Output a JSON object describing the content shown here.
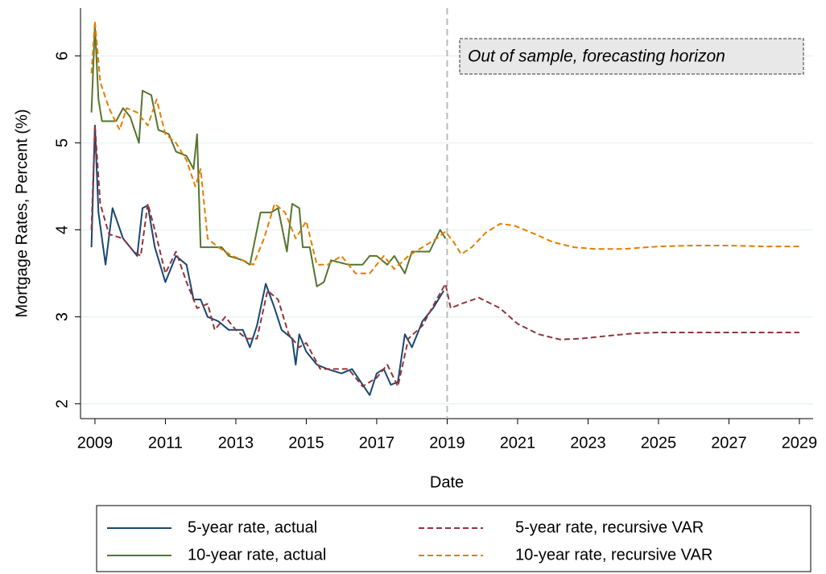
{
  "chart_data": {
    "type": "line",
    "y_label": "Mortgage Rates, Percent (%)",
    "x_label": "Date",
    "annotation": "Out of sample, forecasting horizon",
    "vline": 2019,
    "xlim": [
      2008.59,
      2029.39
    ],
    "xticks": [
      2009,
      2011,
      2013,
      2015,
      2017,
      2019,
      2021,
      2023,
      2025,
      2027,
      2029
    ],
    "ylim": [
      1.83,
      6.55
    ],
    "yticks": [
      2,
      3,
      4,
      5,
      6
    ],
    "grid": true,
    "legend": "bottom",
    "series": [
      {
        "name": "5-year rate, actual",
        "color": "#1a476f",
        "dashed": false,
        "x": [
          2008.9,
          2009.0,
          2009.1,
          2009.3,
          2009.5,
          2009.8,
          2010.0,
          2010.2,
          2010.35,
          2010.5,
          2010.7,
          2011.0,
          2011.3,
          2011.6,
          2011.8,
          2012.0,
          2012.2,
          2012.5,
          2012.8,
          2013.2,
          2013.4,
          2013.6,
          2013.85,
          2014.1,
          2014.3,
          2014.6,
          2014.7,
          2014.8,
          2015.0,
          2015.3,
          2015.6,
          2016.0,
          2016.3,
          2016.8,
          2017.0,
          2017.2,
          2017.4,
          2017.6,
          2017.8,
          2018.0,
          2018.3,
          2018.6,
          2018.9
        ],
        "values": [
          3.8,
          5.2,
          4.2,
          3.6,
          4.25,
          3.9,
          3.8,
          3.7,
          4.25,
          4.28,
          3.8,
          3.4,
          3.7,
          3.6,
          3.2,
          3.2,
          3.0,
          2.95,
          2.85,
          2.85,
          2.65,
          2.9,
          3.38,
          3.1,
          2.85,
          2.75,
          2.45,
          2.8,
          2.6,
          2.45,
          2.4,
          2.35,
          2.4,
          2.1,
          2.35,
          2.4,
          2.22,
          2.25,
          2.8,
          2.65,
          2.95,
          3.1,
          3.3
        ]
      },
      {
        "name": "5-year rate, recursive VAR",
        "color": "#90353b",
        "dashed": true,
        "x": [
          2008.9,
          2009.0,
          2009.15,
          2009.4,
          2009.8,
          2010.1,
          2010.3,
          2010.5,
          2010.7,
          2011.0,
          2011.3,
          2011.6,
          2011.9,
          2012.2,
          2012.4,
          2012.7,
          2013.0,
          2013.3,
          2013.6,
          2013.9,
          2014.2,
          2014.5,
          2014.8,
          2015.0,
          2015.4,
          2015.8,
          2016.2,
          2016.6,
          2017.0,
          2017.3,
          2017.6,
          2017.9,
          2018.3,
          2018.7,
          2018.95,
          2019.1,
          2019.4,
          2019.9,
          2020.5,
          2021.0,
          2021.6,
          2022.2,
          2022.8,
          2023.5,
          2024.3,
          2025.0,
          2026.0,
          2027.0,
          2028.0,
          2029.0
        ],
        "values": [
          4.0,
          5.2,
          4.3,
          3.95,
          3.9,
          3.75,
          3.7,
          4.3,
          4.0,
          3.5,
          3.75,
          3.4,
          3.1,
          3.15,
          2.85,
          3.0,
          2.85,
          2.75,
          2.75,
          3.3,
          3.2,
          2.8,
          2.65,
          2.7,
          2.4,
          2.4,
          2.4,
          2.2,
          2.3,
          2.45,
          2.2,
          2.75,
          2.9,
          3.2,
          3.38,
          3.1,
          3.15,
          3.22,
          3.1,
          2.92,
          2.8,
          2.74,
          2.75,
          2.78,
          2.81,
          2.82,
          2.82,
          2.82,
          2.82,
          2.82
        ]
      },
      {
        "name": "10-year rate, actual",
        "color": "#55752f",
        "dashed": false,
        "x": [
          2008.9,
          2009.0,
          2009.1,
          2009.2,
          2009.6,
          2009.8,
          2010.0,
          2010.25,
          2010.35,
          2010.6,
          2010.8,
          2011.1,
          2011.3,
          2011.6,
          2011.8,
          2011.9,
          2012.0,
          2012.6,
          2012.8,
          2013.2,
          2013.4,
          2013.7,
          2014.0,
          2014.2,
          2014.45,
          2014.6,
          2014.8,
          2014.9,
          2015.1,
          2015.3,
          2015.5,
          2015.7,
          2016.2,
          2016.6,
          2016.8,
          2017.0,
          2017.3,
          2017.5,
          2017.8,
          2018.0,
          2018.5,
          2018.8,
          2018.95
        ],
        "values": [
          5.35,
          6.35,
          5.5,
          5.25,
          5.25,
          5.4,
          5.3,
          5.0,
          5.6,
          5.55,
          5.15,
          5.1,
          4.9,
          4.85,
          4.7,
          5.1,
          3.8,
          3.8,
          3.7,
          3.65,
          3.6,
          4.2,
          4.2,
          4.25,
          3.75,
          4.3,
          4.25,
          3.8,
          3.8,
          3.35,
          3.4,
          3.65,
          3.6,
          3.6,
          3.7,
          3.7,
          3.6,
          3.7,
          3.5,
          3.75,
          3.75,
          4.0,
          3.9
        ]
      },
      {
        "name": "10-year rate, recursive VAR",
        "color": "#e37e00",
        "dashed": true,
        "x": [
          2008.9,
          2009.0,
          2009.15,
          2009.4,
          2009.7,
          2009.9,
          2010.2,
          2010.5,
          2010.75,
          2011.0,
          2011.3,
          2011.6,
          2011.85,
          2012.0,
          2012.2,
          2012.5,
          2012.9,
          2013.2,
          2013.5,
          2013.8,
          2014.1,
          2014.4,
          2014.7,
          2015.0,
          2015.3,
          2015.6,
          2016.0,
          2016.4,
          2016.8,
          2017.2,
          2017.5,
          2017.9,
          2018.3,
          2018.7,
          2018.95,
          2019.2,
          2019.4,
          2019.7,
          2020.1,
          2020.5,
          2020.9,
          2021.5,
          2022.0,
          2022.6,
          2023.2,
          2024.0,
          2025.0,
          2026.0,
          2027.0,
          2028.0,
          2029.0
        ],
        "values": [
          5.8,
          6.4,
          5.7,
          5.4,
          5.15,
          5.4,
          5.35,
          5.2,
          5.5,
          5.1,
          5.0,
          4.8,
          4.5,
          4.7,
          3.9,
          3.8,
          3.7,
          3.65,
          3.6,
          3.9,
          4.3,
          4.2,
          3.9,
          4.1,
          3.6,
          3.6,
          3.7,
          3.5,
          3.5,
          3.7,
          3.55,
          3.7,
          3.8,
          3.9,
          3.98,
          3.85,
          3.72,
          3.8,
          3.97,
          4.07,
          4.05,
          3.95,
          3.86,
          3.8,
          3.78,
          3.78,
          3.81,
          3.82,
          3.82,
          3.81,
          3.81
        ]
      }
    ]
  }
}
